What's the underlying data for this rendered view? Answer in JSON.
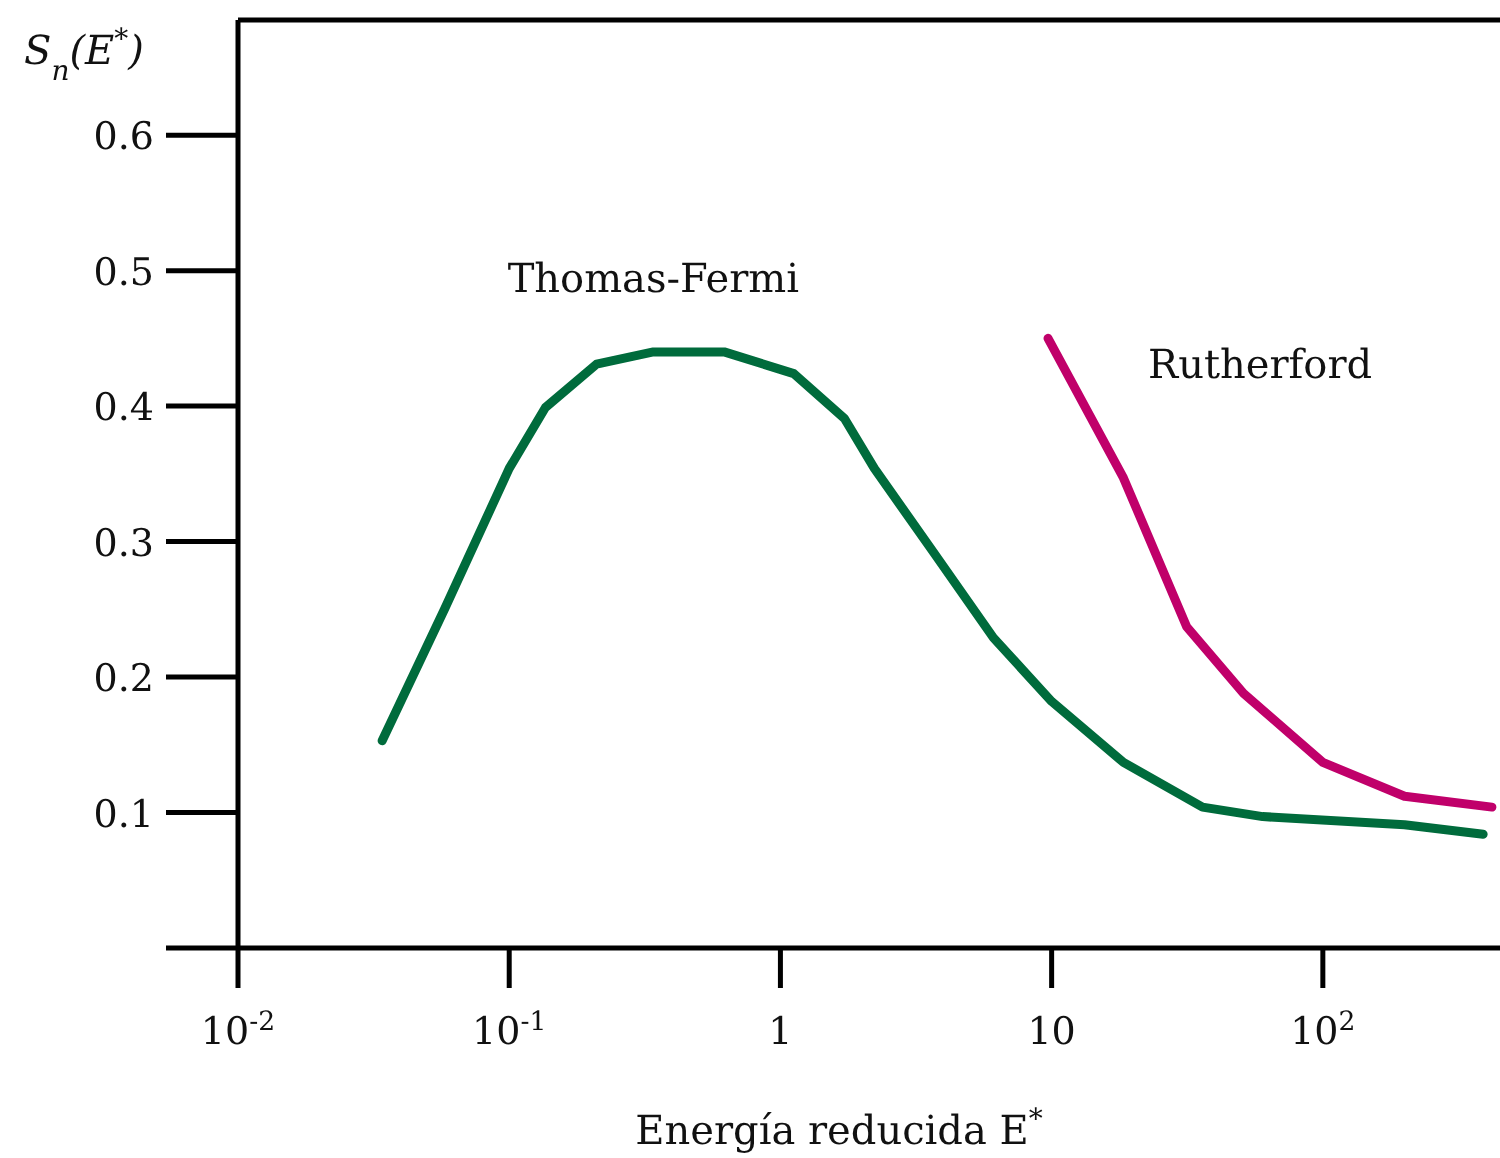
{
  "chart_data": {
    "type": "line",
    "xlabel": "Energía reducida E$^{*}$",
    "ylabel": "S$_{n}$(E$^{*}$)",
    "log": "x",
    "xlim": [
      0.01,
      450
    ],
    "xticks": [
      {
        "value": 0.01,
        "label": "10$^{-2}$"
      },
      {
        "value": 0.1,
        "label": "10$^{-1}$"
      },
      1,
      10,
      {
        "value": 100,
        "label": "10$^{2}$"
      }
    ],
    "ylim": [
      0,
      0.685
    ],
    "yticks": [
      {
        "value": 0,
        "label": null
      },
      0.1,
      0.2,
      0.3,
      0.4,
      0.5,
      0.6
    ],
    "grid": false,
    "legend": false,
    "marker": "none",
    "line_style": "solid",
    "series": [
      {
        "name": "Thomas-Fermi",
        "color": "#006b3c",
        "x": [
          0.034,
          0.058,
          0.1,
          0.136,
          0.21,
          0.34,
          0.62,
          1.12,
          1.72,
          2.22,
          3.7,
          6.1,
          10,
          18.4,
          36,
          60,
          200,
          390
        ],
        "values": [
          0.153,
          0.251,
          0.354,
          0.399,
          0.431,
          0.44,
          0.44,
          0.424,
          0.391,
          0.354,
          0.291,
          0.229,
          0.182,
          0.137,
          0.104,
          0.097,
          0.091,
          0.084
        ]
      },
      {
        "name": "Rutherford",
        "color": "#c0006a",
        "x": [
          9.7,
          18.4,
          31.5,
          51,
          100,
          200,
          420
        ],
        "values": [
          0.45,
          0.347,
          0.237,
          0.188,
          0.137,
          0.112,
          0.104
        ]
      }
    ]
  }
}
